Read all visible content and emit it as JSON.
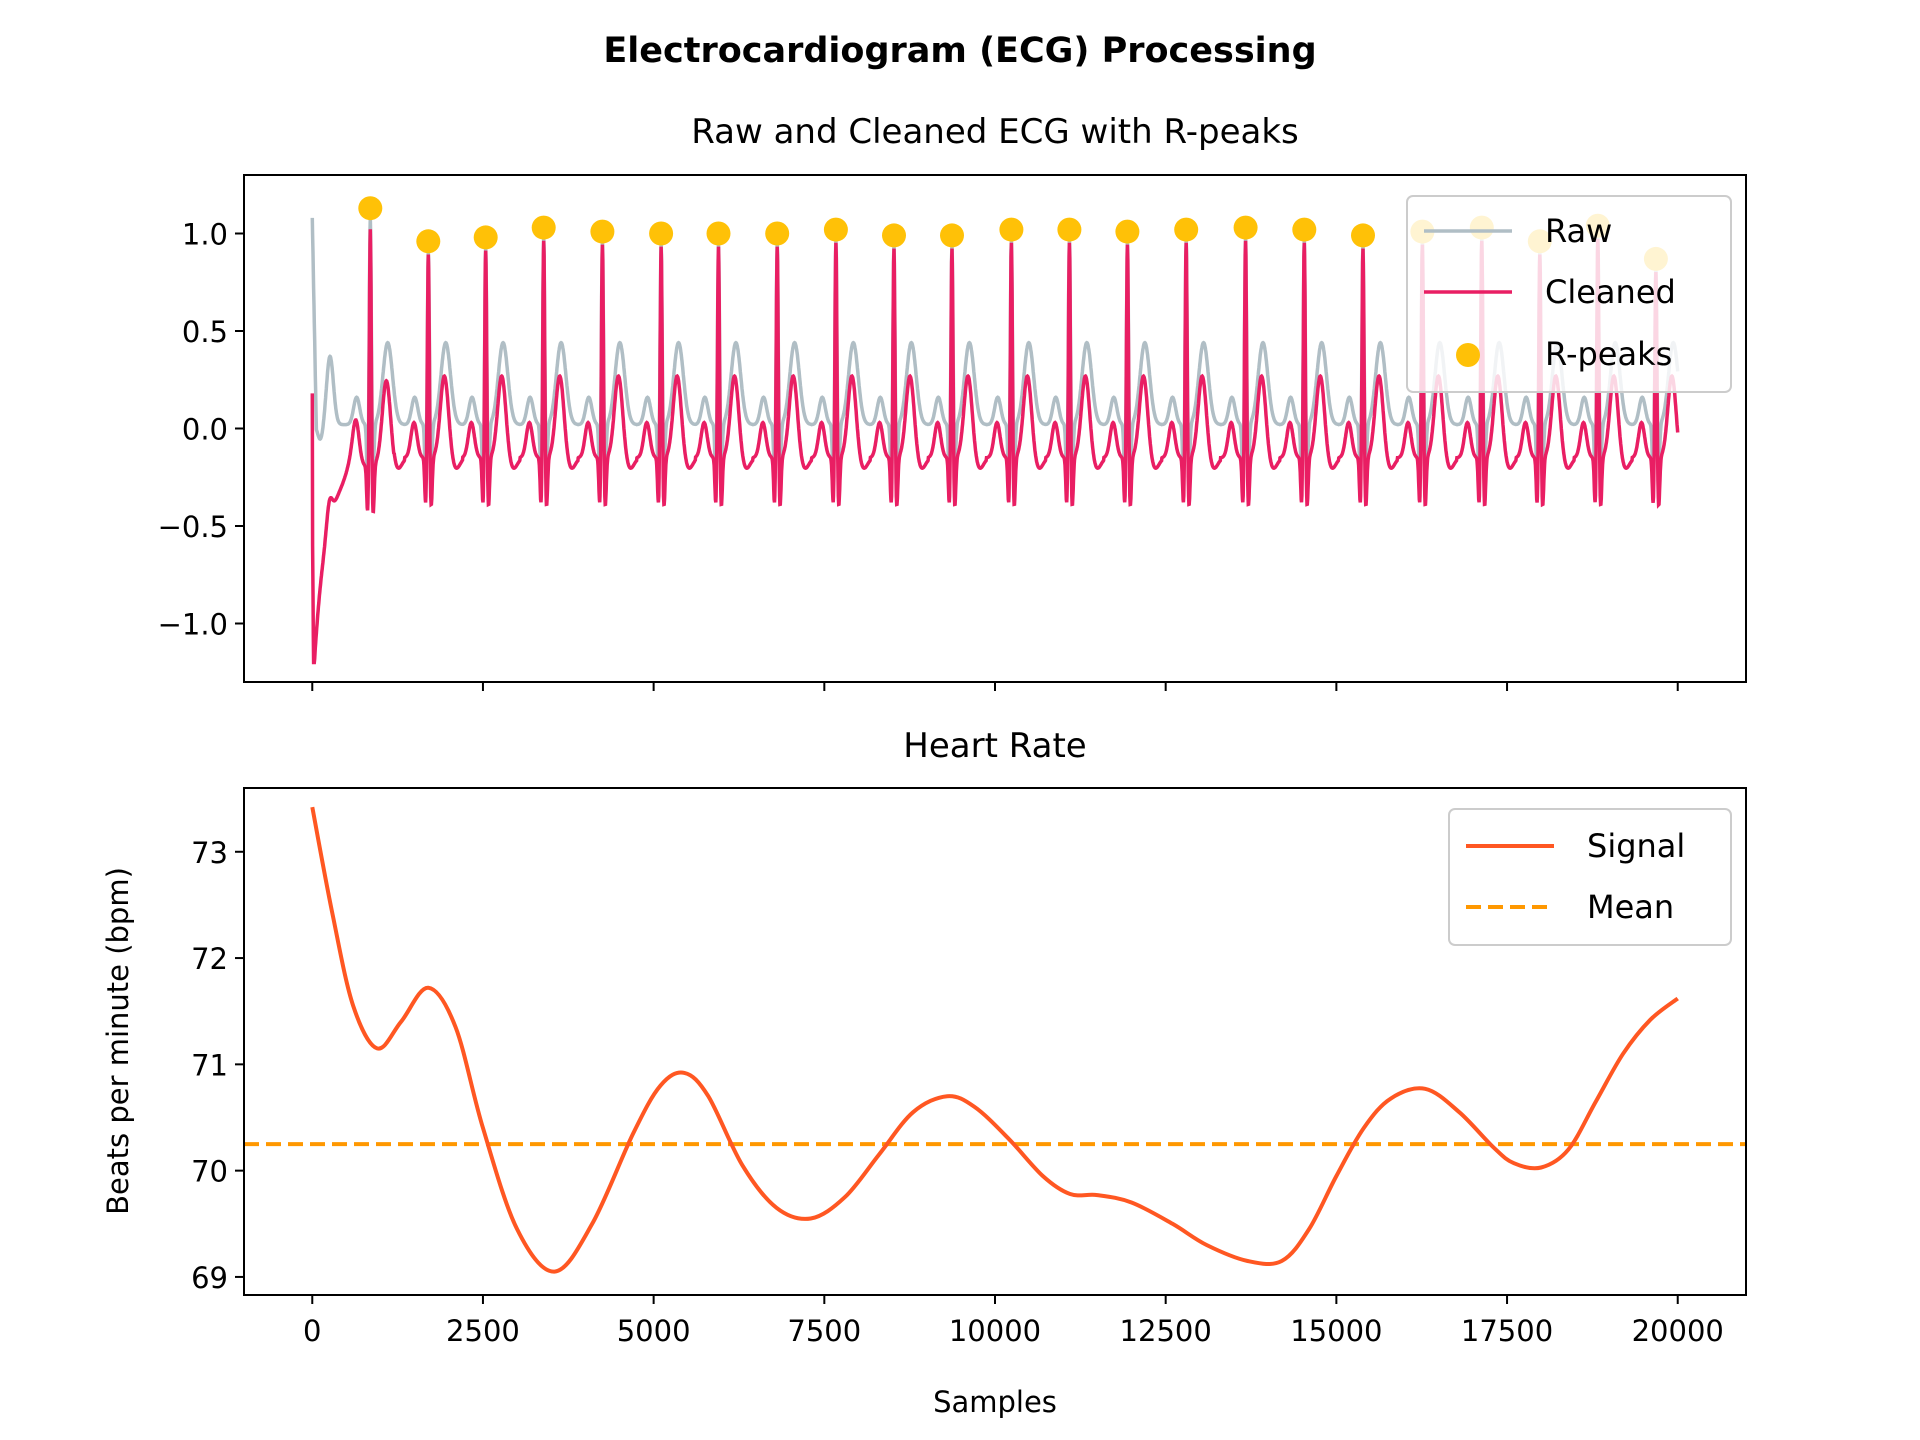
{
  "figure": {
    "suptitle": "Electrocardiogram (ECG) Processing"
  },
  "colors": {
    "raw": "#b0bec5",
    "cleaned": "#e91e63",
    "rpeaks": "#ffc107",
    "hr_signal": "#ff5722",
    "hr_mean": "#ff9800",
    "axes": "#000000",
    "legend_border": "#cccccc"
  },
  "chart_data": [
    {
      "type": "line",
      "title": "Raw and Cleaned ECG with R-peaks",
      "xlabel": "",
      "ylabel": "",
      "xlim": [
        -1000,
        21000
      ],
      "ylim": [
        -1.3,
        1.3
      ],
      "yticks": [
        -1.0,
        -0.5,
        0.0,
        0.5,
        1.0
      ],
      "ytick_labels": [
        "−1.0",
        "−0.5",
        "0.0",
        "0.5",
        "1.0"
      ],
      "xticks": [
        0,
        2500,
        5000,
        7500,
        10000,
        12500,
        15000,
        17500,
        20000
      ],
      "xtick_labels_visible": false,
      "legend": {
        "location": "upper right",
        "entries": [
          "Raw",
          "Cleaned",
          "R-peaks"
        ]
      },
      "series": [
        {
          "name": "Raw",
          "kind": "line",
          "note_shape": "ECG waveform, baseline ~0.0, R spikes ~1.0–1.2"
        },
        {
          "name": "Cleaned",
          "kind": "line",
          "note_shape": "filtered ECG, baseline ~−0.15, R spikes ~1.0, initial dip to −1.2"
        },
        {
          "name": "R-peaks",
          "kind": "scatter",
          "x": [
            850,
            1700,
            2540,
            3390,
            4250,
            5110,
            5950,
            6810,
            7670,
            8520,
            9370,
            10240,
            11090,
            11940,
            12800,
            13670,
            14530,
            15390,
            16260,
            17130,
            17980,
            18830,
            19680
          ],
          "y": [
            1.13,
            0.96,
            0.98,
            1.03,
            1.01,
            1.0,
            1.0,
            1.0,
            1.02,
            0.99,
            0.99,
            1.02,
            1.02,
            1.01,
            1.02,
            1.03,
            1.02,
            0.99,
            1.01,
            1.03,
            0.96,
            1.04,
            0.87
          ]
        }
      ]
    },
    {
      "type": "line",
      "title": "Heart Rate",
      "xlabel": "Samples",
      "ylabel": "Beats per minute (bpm)",
      "xlim": [
        -1000,
        21000
      ],
      "ylim": [
        68.83,
        73.6
      ],
      "xticks": [
        0,
        2500,
        5000,
        7500,
        10000,
        12500,
        15000,
        17500,
        20000
      ],
      "xtick_labels": [
        "0",
        "2500",
        "5000",
        "7500",
        "10000",
        "12500",
        "15000",
        "17500",
        "20000"
      ],
      "yticks": [
        69,
        70,
        71,
        72,
        73
      ],
      "ytick_labels": [
        "69",
        "70",
        "71",
        "72",
        "73"
      ],
      "legend": {
        "location": "upper right",
        "entries": [
          "Signal",
          "Mean"
        ]
      },
      "series": [
        {
          "name": "Signal",
          "kind": "line",
          "x": [
            0,
            300,
            600,
            950,
            1300,
            1700,
            2100,
            2500,
            3000,
            3550,
            4100,
            4700,
            5100,
            5450,
            5800,
            6300,
            6800,
            7300,
            7800,
            8300,
            8800,
            9300,
            9700,
            10200,
            10700,
            11100,
            11500,
            12000,
            12600,
            13100,
            13700,
            14200,
            14600,
            15000,
            15400,
            15800,
            16300,
            16800,
            17300,
            17600,
            18000,
            18400,
            18800,
            19200,
            19600,
            20000
          ],
          "y": [
            73.42,
            72.4,
            71.55,
            71.15,
            71.4,
            71.72,
            71.35,
            70.4,
            69.45,
            69.05,
            69.5,
            70.35,
            70.8,
            70.92,
            70.7,
            70.05,
            69.65,
            69.55,
            69.75,
            70.15,
            70.55,
            70.7,
            70.6,
            70.3,
            69.95,
            69.78,
            69.77,
            69.7,
            69.5,
            69.3,
            69.15,
            69.15,
            69.45,
            69.95,
            70.4,
            70.68,
            70.77,
            70.55,
            70.22,
            70.07,
            70.03,
            70.2,
            70.65,
            71.1,
            71.42,
            71.62
          ]
        },
        {
          "name": "Mean",
          "kind": "hline",
          "y": 70.25
        }
      ]
    }
  ]
}
